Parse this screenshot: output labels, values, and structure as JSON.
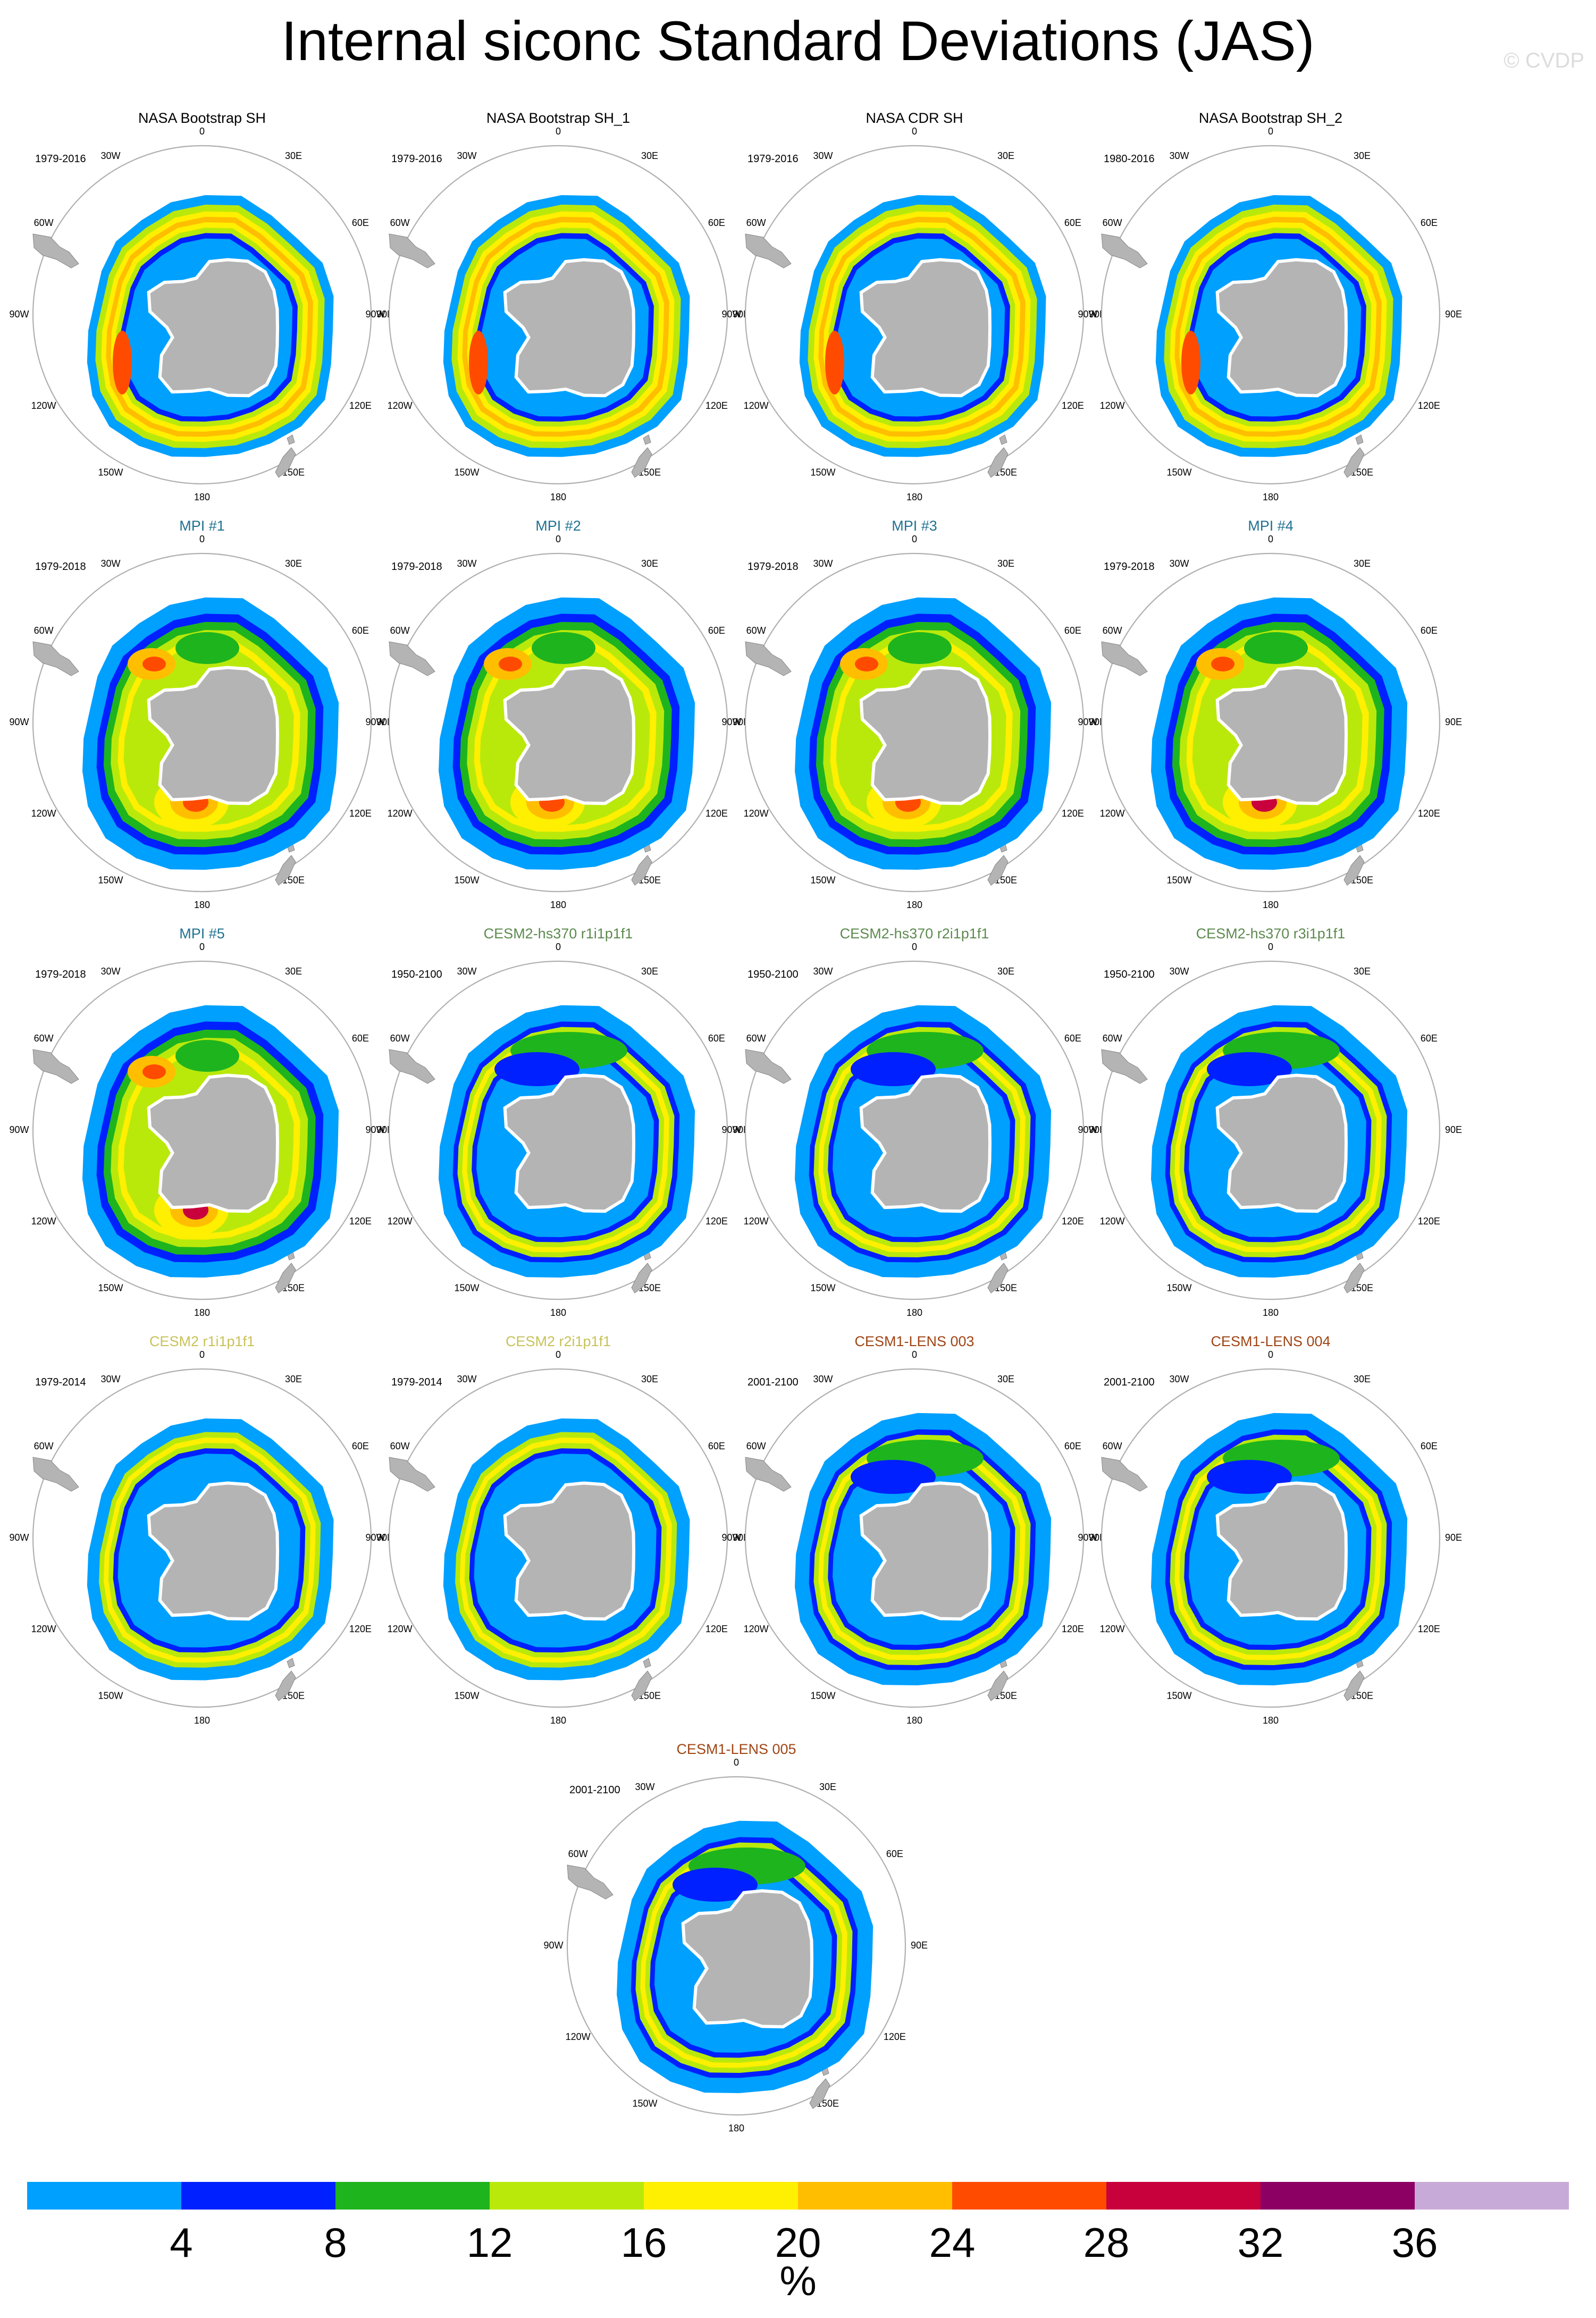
{
  "title": "Internal siconc Standard Deviations (JAS)",
  "watermark": "© CVDP",
  "colors": {
    "obs_title": "#000000",
    "mpi_title": "#1f7191",
    "cesm2hs_title": "#5c8a4e",
    "cesm2_title": "#c8c25a",
    "lens_title": "#a04515",
    "land": "#b4b4b4",
    "circle": "#b0b0b0"
  },
  "chart_data": {
    "type": "polar-map-panels",
    "variable": "siconc",
    "season": "JAS",
    "units": "%",
    "levels": [
      4,
      8,
      12,
      16,
      20,
      24,
      28,
      32,
      36
    ],
    "colors": [
      "#00a0ff",
      "#0020ff",
      "#1eb41e",
      "#b9e90b",
      "#ffef00",
      "#ffbe00",
      "#ff4b00",
      "#c8003c",
      "#8c0064",
      "#c8aad8"
    ],
    "longitude_labels": [
      "0",
      "30E",
      "60E",
      "90E",
      "120E",
      "150E",
      "180",
      "150W",
      "120W",
      "90W",
      "60W",
      "30W"
    ],
    "panels": [
      {
        "title": "NASA Bootstrap SH",
        "years": "1979-2016",
        "group": "obs",
        "style": "obs"
      },
      {
        "title": "NASA Bootstrap SH_1",
        "years": "1979-2016",
        "group": "obs",
        "style": "obs"
      },
      {
        "title": "NASA CDR SH",
        "years": "1979-2016",
        "group": "obs",
        "style": "obs"
      },
      {
        "title": "NASA Bootstrap SH_2",
        "years": "1980-2016",
        "group": "obs",
        "style": "obs"
      },
      {
        "title": "MPI #1",
        "years": "1979-2018",
        "group": "mpi",
        "style": "mpi"
      },
      {
        "title": "MPI #2",
        "years": "1979-2018",
        "group": "mpi",
        "style": "mpi"
      },
      {
        "title": "MPI #3",
        "years": "1979-2018",
        "group": "mpi",
        "style": "mpi"
      },
      {
        "title": "MPI #4",
        "years": "1979-2018",
        "group": "mpi",
        "style": "mpi"
      },
      {
        "title": "MPI #5",
        "years": "1979-2018",
        "group": "mpi",
        "style": "mpi"
      },
      {
        "title": "CESM2-hs370 r1i1p1f1",
        "years": "1950-2100",
        "group": "cesm2hs",
        "style": "cesm"
      },
      {
        "title": "CESM2-hs370 r2i1p1f1",
        "years": "1950-2100",
        "group": "cesm2hs",
        "style": "cesm"
      },
      {
        "title": "CESM2-hs370 r3i1p1f1",
        "years": "1950-2100",
        "group": "cesm2hs",
        "style": "cesm"
      },
      {
        "title": "CESM2 r1i1p1f1",
        "years": "1979-2014",
        "group": "cesm2",
        "style": "cesmlow"
      },
      {
        "title": "CESM2 r2i1p1f1",
        "years": "1979-2014",
        "group": "cesm2",
        "style": "cesmlow"
      },
      {
        "title": "CESM1-LENS 003",
        "years": "2001-2100",
        "group": "lens",
        "style": "cesm"
      },
      {
        "title": "CESM1-LENS 004",
        "years": "2001-2100",
        "group": "lens",
        "style": "cesm"
      },
      {
        "title": "CESM1-LENS 005",
        "years": "2001-2100",
        "group": "lens",
        "style": "cesm"
      }
    ]
  },
  "colorbar": {
    "tick_labels": [
      "4",
      "8",
      "12",
      "16",
      "20",
      "24",
      "28",
      "32",
      "36"
    ],
    "units_label": "%"
  }
}
